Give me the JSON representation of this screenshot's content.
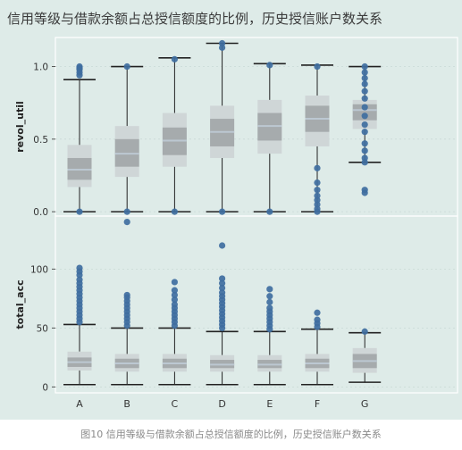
{
  "caption": "图10 信用等级与借款余额占总授信额度的比例，历史授信账户数关系",
  "colors": {
    "panel_background": "#deebe8",
    "point": "#3f6e9f",
    "box_light": "#cfd6d7",
    "box_dark": "#a6abad",
    "median": "#bcc8d2",
    "whisker": "#222222",
    "frame": "#ffffff",
    "title_text": "#3a3a3a"
  },
  "chart_data": [
    {
      "type": "box",
      "title": "信用等级与借款余额占总授信额度的比例，历史授信账户数关系",
      "xlabel": "",
      "ylabel": "revol_util",
      "categories": [
        "A",
        "B",
        "C",
        "D",
        "E",
        "F",
        "G"
      ],
      "ylim": [
        -0.03,
        1.2
      ],
      "yticks": [
        0.0,
        0.5,
        1.0
      ],
      "ytick_labels": [
        "0.0",
        "0.5",
        "1.0"
      ],
      "grid": true,
      "boxes": [
        {
          "category": "A",
          "lower_whisker": 0.0,
          "q1": 0.17,
          "inner_low": 0.22,
          "median": 0.29,
          "inner_high": 0.37,
          "q3": 0.46,
          "upper_whisker": 0.91
        },
        {
          "category": "B",
          "lower_whisker": 0.0,
          "q1": 0.24,
          "inner_low": 0.31,
          "median": 0.4,
          "inner_high": 0.5,
          "q3": 0.59,
          "upper_whisker": 1.0
        },
        {
          "category": "C",
          "lower_whisker": 0.0,
          "q1": 0.31,
          "inner_low": 0.39,
          "median": 0.49,
          "inner_high": 0.58,
          "q3": 0.68,
          "upper_whisker": 1.06
        },
        {
          "category": "D",
          "lower_whisker": 0.0,
          "q1": 0.37,
          "inner_low": 0.45,
          "median": 0.55,
          "inner_high": 0.64,
          "q3": 0.73,
          "upper_whisker": 1.16
        },
        {
          "category": "E",
          "lower_whisker": 0.0,
          "q1": 0.4,
          "inner_low": 0.49,
          "median": 0.59,
          "inner_high": 0.68,
          "q3": 0.77,
          "upper_whisker": 1.02
        },
        {
          "category": "F",
          "lower_whisker": 0.0,
          "q1": 0.45,
          "inner_low": 0.55,
          "median": 0.64,
          "inner_high": 0.73,
          "q3": 0.8,
          "upper_whisker": 1.01
        },
        {
          "category": "G",
          "lower_whisker": 0.34,
          "q1": 0.57,
          "inner_low": 0.63,
          "median": 0.7,
          "inner_high": 0.74,
          "q3": 0.77,
          "upper_whisker": 1.0
        }
      ],
      "points": [
        {
          "category": "A",
          "y": [
            0.0,
            1.0,
            0.99,
            0.98,
            0.96,
            0.94
          ]
        },
        {
          "category": "B",
          "y": [
            0.0,
            1.0
          ]
        },
        {
          "category": "C",
          "y": [
            0.0,
            1.05
          ]
        },
        {
          "category": "D",
          "y": [
            0.0,
            1.13,
            1.16
          ]
        },
        {
          "category": "E",
          "y": [
            0.0,
            1.01
          ]
        },
        {
          "category": "F",
          "y": [
            0.0,
            0.02,
            0.05,
            0.08,
            0.11,
            0.15,
            0.2,
            0.3,
            1.0
          ]
        },
        {
          "category": "G",
          "y": [
            0.13,
            0.15,
            0.34,
            0.37,
            0.42,
            0.47,
            0.55,
            0.6,
            0.66,
            0.72,
            0.78,
            0.83,
            0.88,
            0.92,
            0.96,
            1.0
          ]
        }
      ]
    },
    {
      "type": "box",
      "xlabel": "",
      "ylabel": "total_acc",
      "categories": [
        "A",
        "B",
        "C",
        "D",
        "E",
        "F",
        "G"
      ],
      "ylim": [
        -5,
        145
      ],
      "yticks": [
        0,
        50,
        100
      ],
      "ytick_labels": [
        "0",
        "50",
        "100"
      ],
      "grid": true,
      "boxes": [
        {
          "category": "A",
          "lower_whisker": 2,
          "q1": 14,
          "inner_low": 17,
          "median": 21,
          "inner_high": 25,
          "q3": 30,
          "upper_whisker": 53
        },
        {
          "category": "B",
          "lower_whisker": 2,
          "q1": 13,
          "inner_low": 16,
          "median": 20,
          "inner_high": 24,
          "q3": 28,
          "upper_whisker": 50
        },
        {
          "category": "C",
          "lower_whisker": 2,
          "q1": 13,
          "inner_low": 16,
          "median": 20,
          "inner_high": 24,
          "q3": 28,
          "upper_whisker": 50
        },
        {
          "category": "D",
          "lower_whisker": 2,
          "q1": 13,
          "inner_low": 16,
          "median": 19,
          "inner_high": 23,
          "q3": 27,
          "upper_whisker": 47
        },
        {
          "category": "E",
          "lower_whisker": 2,
          "q1": 13,
          "inner_low": 16,
          "median": 19,
          "inner_high": 23,
          "q3": 27,
          "upper_whisker": 47
        },
        {
          "category": "F",
          "lower_whisker": 2,
          "q1": 13,
          "inner_low": 16,
          "median": 20,
          "inner_high": 24,
          "q3": 28,
          "upper_whisker": 49
        },
        {
          "category": "G",
          "lower_whisker": 4,
          "q1": 12,
          "inner_low": 16,
          "median": 22,
          "inner_high": 28,
          "q3": 33,
          "upper_whisker": 46
        }
      ],
      "points": [
        {
          "category": "A",
          "y": [
            55,
            58,
            61,
            64,
            67,
            70,
            73,
            76,
            79,
            82,
            85,
            88,
            91,
            95,
            98,
            101
          ]
        },
        {
          "category": "B",
          "y": [
            52,
            55,
            58,
            61,
            64,
            67,
            70,
            73,
            76,
            78,
            140
          ]
        },
        {
          "category": "C",
          "y": [
            52,
            55,
            58,
            61,
            64,
            67,
            70,
            74,
            78,
            82,
            89
          ]
        },
        {
          "category": "D",
          "y": [
            50,
            53,
            56,
            59,
            62,
            65,
            68,
            71,
            74,
            77,
            80,
            84,
            88,
            92,
            120
          ]
        },
        {
          "category": "E",
          "y": [
            49,
            52,
            55,
            58,
            61,
            64,
            67,
            72,
            77,
            83
          ]
        },
        {
          "category": "F",
          "y": [
            51,
            54,
            57,
            63
          ]
        },
        {
          "category": "G",
          "y": [
            47
          ]
        }
      ]
    }
  ]
}
